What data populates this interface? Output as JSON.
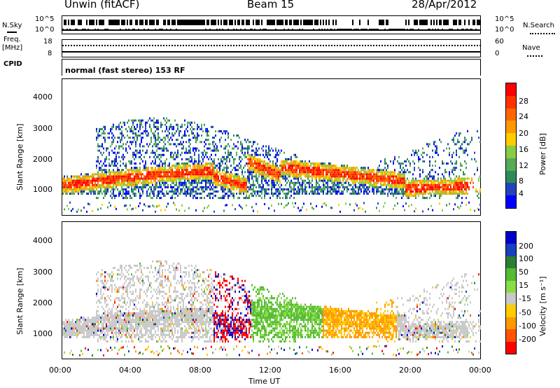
{
  "header": {
    "station": "Unwin (fitACF)",
    "beam": "Beam 15",
    "date": "28/Apr/2012"
  },
  "top_panels": {
    "nsky_label": "N.Sky",
    "nsky_ticks": [
      "10^5",
      "10^0"
    ],
    "nsearch_label": "N.Search",
    "nsearch_ticks": [
      "10^5",
      "10^0"
    ],
    "freq_label_1": "Freq.",
    "freq_label_2": "[MHz]",
    "freq_ticks": [
      "18",
      "8"
    ],
    "nave_label": "Nave",
    "nave_ticks": [
      "60",
      "0"
    ],
    "cpid_label": "CPID",
    "cpid_text": "normal (fast stereo) 153 RF"
  },
  "colors": {
    "power_scale": [
      "#0000ff",
      "#2244bb",
      "#2e8b57",
      "#55aa55",
      "#88cc44",
      "#ffcc00",
      "#ff9900",
      "#ff6600",
      "#ff3300",
      "#ff0000"
    ],
    "velocity_scale": [
      "#0000cc",
      "#1a3fbf",
      "#2e7d32",
      "#55bb33",
      "#88dd44",
      "#c8c8c8",
      "#ffcc00",
      "#ff9900",
      "#ff5500",
      "#ff0000"
    ],
    "ground_scatter": "#b4b4b4"
  },
  "chart_data": [
    {
      "type": "heatmap",
      "panel": "power",
      "xlabel": "",
      "ylabel": "Slant Range [km]",
      "y_ticks": [
        "1000",
        "2000",
        "3000",
        "4000"
      ],
      "ylim": [
        180,
        4600
      ],
      "x_ticks": [
        "00:00",
        "04:00",
        "08:00",
        "12:00",
        "16:00",
        "20:00",
        "00:00"
      ],
      "colorbar": {
        "label": "Power [dB]",
        "ticks": [
          "28",
          "24",
          "20",
          "16",
          "12",
          "8",
          "4"
        ],
        "range": [
          0,
          30
        ]
      },
      "grid": false
    },
    {
      "type": "heatmap",
      "panel": "velocity",
      "xlabel": "Time UT",
      "ylabel": "Slant Range [km]",
      "y_ticks": [
        "1000",
        "2000",
        "3000",
        "4000"
      ],
      "ylim": [
        180,
        4600
      ],
      "x_ticks": [
        "00:00",
        "04:00",
        "08:00",
        "12:00",
        "16:00",
        "20:00",
        "00:00"
      ],
      "colorbar": {
        "label": "Velocity [m s⁻¹]",
        "ticks": [
          "200",
          "100",
          "50",
          "15",
          "-15",
          "-50",
          "-100",
          "-200"
        ],
        "range": [
          -250,
          250
        ]
      },
      "grid": false
    }
  ]
}
